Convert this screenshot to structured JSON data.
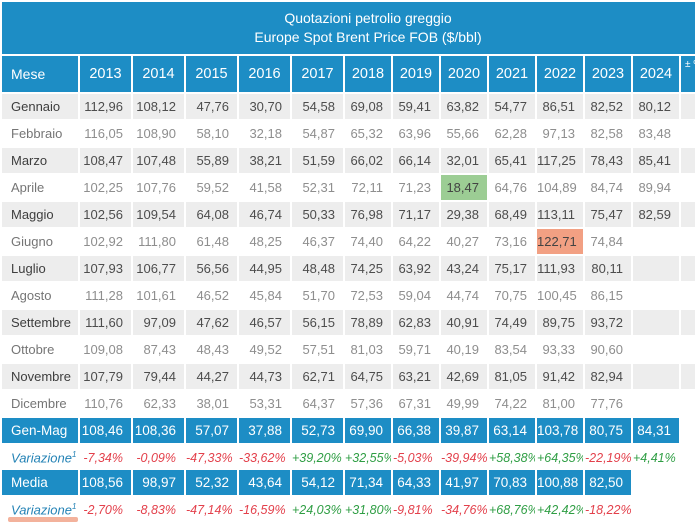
{
  "chart_data": {
    "type": "table",
    "title": "Quotazioni petrolio greggio",
    "subtitle": "Europe Spot Brent Price FOB ($/bbl)",
    "row_header_label": "Mese",
    "columns": [
      "2013",
      "2014",
      "2015",
      "2016",
      "2017",
      "2018",
      "2019",
      "2020",
      "2021",
      "2022",
      "2023",
      "2024"
    ],
    "clipped_last_column_header": "± %",
    "rows": [
      {
        "label": "Gennaio",
        "values": [
          "112,96",
          "108,12",
          "47,76",
          "30,70",
          "54,58",
          "69,08",
          "59,41",
          "63,82",
          "54,77",
          "86,51",
          "82,52",
          "80,12"
        ]
      },
      {
        "label": "Febbraio",
        "values": [
          "116,05",
          "108,90",
          "58,10",
          "32,18",
          "54,87",
          "65,32",
          "63,96",
          "55,66",
          "62,28",
          "97,13",
          "82,58",
          "83,48"
        ]
      },
      {
        "label": "Marzo",
        "values": [
          "108,47",
          "107,48",
          "55,89",
          "38,21",
          "51,59",
          "66,02",
          "66,14",
          "32,01",
          "65,41",
          "117,25",
          "78,43",
          "85,41"
        ]
      },
      {
        "label": "Aprile",
        "values": [
          "102,25",
          "107,76",
          "59,52",
          "41,58",
          "52,31",
          "72,11",
          "71,23",
          "18,47",
          "64,76",
          "104,89",
          "84,74",
          "89,94"
        ]
      },
      {
        "label": "Maggio",
        "values": [
          "102,56",
          "109,54",
          "64,08",
          "46,74",
          "50,33",
          "76,98",
          "71,17",
          "29,38",
          "68,49",
          "113,11",
          "75,47",
          "82,59"
        ]
      },
      {
        "label": "Giugno",
        "values": [
          "102,92",
          "111,80",
          "61,48",
          "48,25",
          "46,37",
          "74,40",
          "64,22",
          "40,27",
          "73,16",
          "122,71",
          "74,84",
          ""
        ]
      },
      {
        "label": "Luglio",
        "values": [
          "107,93",
          "106,77",
          "56,56",
          "44,95",
          "48,48",
          "74,25",
          "63,92",
          "43,24",
          "75,17",
          "111,93",
          "80,11",
          ""
        ]
      },
      {
        "label": "Agosto",
        "values": [
          "111,28",
          "101,61",
          "46,52",
          "45,84",
          "51,70",
          "72,53",
          "59,04",
          "44,74",
          "70,75",
          "100,45",
          "86,15",
          ""
        ]
      },
      {
        "label": "Settembre",
        "values": [
          "111,60",
          "97,09",
          "47,62",
          "46,57",
          "56,15",
          "78,89",
          "62,83",
          "40,91",
          "74,49",
          "89,75",
          "93,72",
          ""
        ]
      },
      {
        "label": "Ottobre",
        "values": [
          "109,08",
          "87,43",
          "48,43",
          "49,52",
          "57,51",
          "81,03",
          "59,71",
          "40,19",
          "83,54",
          "93,33",
          "90,60",
          ""
        ]
      },
      {
        "label": "Novembre",
        "values": [
          "107,79",
          "79,44",
          "44,27",
          "44,73",
          "62,71",
          "64,75",
          "63,21",
          "42,69",
          "81,05",
          "91,42",
          "82,94",
          ""
        ]
      },
      {
        "label": "Dicembre",
        "values": [
          "110,76",
          "62,33",
          "38,01",
          "53,31",
          "64,37",
          "57,36",
          "67,31",
          "49,99",
          "74,22",
          "81,00",
          "77,76",
          ""
        ]
      }
    ],
    "summary_rows": [
      {
        "type": "totals",
        "label": "Gen-Mag",
        "values": [
          "108,46",
          "108,36",
          "57,07",
          "37,88",
          "52,73",
          "69,90",
          "66,38",
          "39,87",
          "63,14",
          "103,78",
          "80,75",
          "84,31"
        ]
      },
      {
        "type": "variation",
        "label": "Variazione",
        "sup": "1",
        "suffix": "%",
        "values": [
          "-7,34%",
          "-0,09%",
          "-47,33%",
          "-33,62%",
          "+39,20%",
          "+32,55%",
          "-5,03%",
          "-39,94%",
          "+58,38%",
          "+64,35%",
          "-22,19%",
          "+4,41%"
        ]
      },
      {
        "type": "totals",
        "label": "Media",
        "values": [
          "108,56",
          "98,97",
          "52,32",
          "43,64",
          "54,12",
          "71,34",
          "64,33",
          "41,97",
          "70,83",
          "100,88",
          "82,50",
          ""
        ]
      },
      {
        "type": "variation",
        "label": "Variazione",
        "sup": "1",
        "suffix": "%",
        "values": [
          "-2,70%",
          "-8,83%",
          "-47,14%",
          "-16,59%",
          "+24,03%",
          "+31,80%",
          "-9,81%",
          "-34,76%",
          "+68,76%",
          "+42,42%",
          "-18,22%",
          ""
        ]
      }
    ],
    "highlights": [
      {
        "row": "Aprile",
        "column": "2020",
        "value": "18,47",
        "style": "green-min"
      },
      {
        "row": "Giugno",
        "column": "2022",
        "value": "122,71",
        "style": "red-max"
      }
    ]
  },
  "colors": {
    "header_blue": "#1d8dc5",
    "stripe_gray": "#ededed",
    "green_highlight": "#9ccd94",
    "red_highlight": "#f2a083",
    "negative_text": "#e3404b",
    "positive_text": "#2f9e44",
    "variation_label_blue": "#2382b5",
    "scrollbar_thumb": "#f3b29c"
  },
  "ui": {
    "horizontal_scrollbar": "visible"
  }
}
